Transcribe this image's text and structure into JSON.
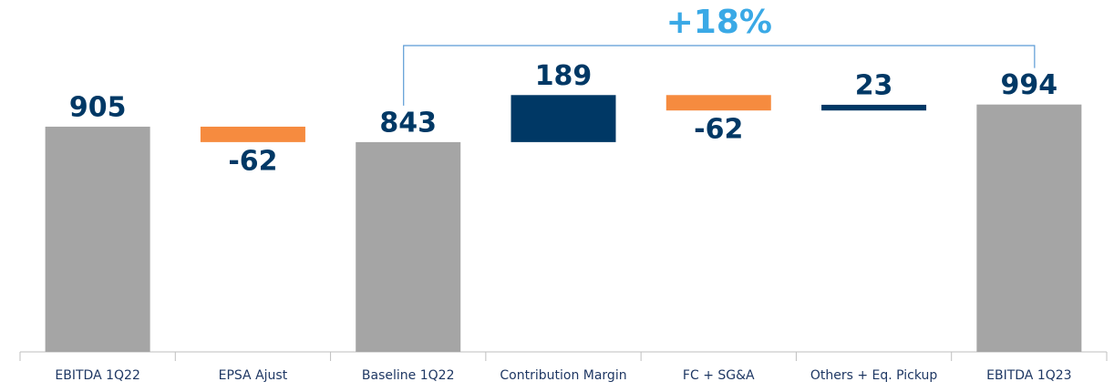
{
  "chart_data": {
    "type": "waterfall",
    "categories": [
      "EBITDA 1Q22",
      "EPSA Ajust",
      "Baseline 1Q22",
      "Contribution Margin",
      "FC + SG&A",
      "Others + Eq. Pickup",
      "EBITDA 1Q23"
    ],
    "values": [
      905,
      -62,
      843,
      189,
      -62,
      23,
      994
    ],
    "measure": [
      "total",
      "relative",
      "total",
      "relative",
      "relative",
      "relative",
      "total"
    ],
    "colors": {
      "total": "#a5a5a5",
      "increase": "#003865",
      "decrease": "#f68b3f"
    },
    "ylim": [
      0,
      1414
    ],
    "annotations": [
      {
        "text": "+18%",
        "from": 2,
        "to": 6
      }
    ]
  }
}
